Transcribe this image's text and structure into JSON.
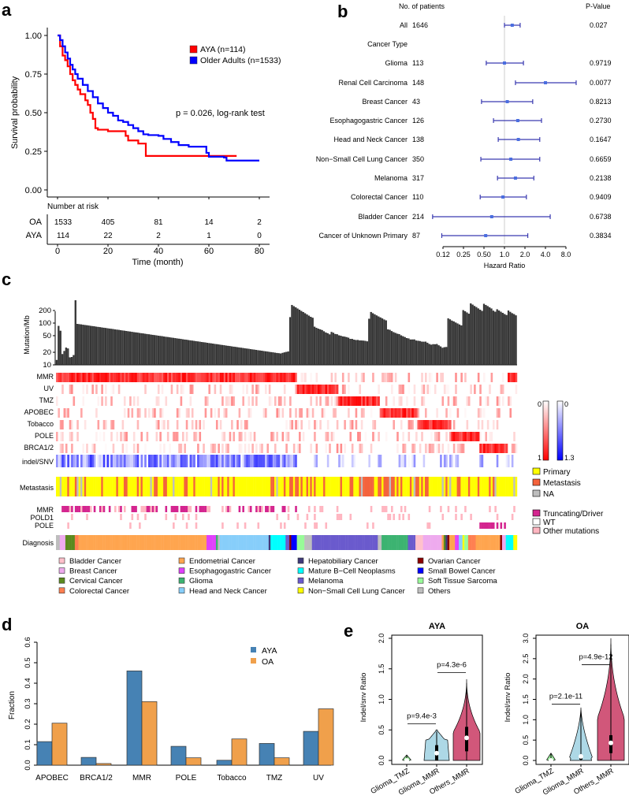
{
  "panel_labels": {
    "a": "a",
    "b": "b",
    "c": "c",
    "d": "d",
    "e": "e"
  },
  "chart_data": [
    {
      "id": "a",
      "type": "line",
      "ylabel": "Survival probability",
      "xlabel": "Time (month)",
      "xlim": [
        0,
        80
      ],
      "ylim": [
        0,
        1
      ],
      "xticks": [
        "0",
        "20",
        "40",
        "60",
        "80"
      ],
      "yticks": [
        "0.00",
        "0.25",
        "0.50",
        "0.75",
        "1.00"
      ],
      "annotation": "p = 0.026, log-rank test",
      "legend_position": "top-right",
      "series": [
        {
          "name": "AYA (n=114)",
          "color": "#ff0000",
          "x": [
            0,
            1,
            2,
            3,
            4,
            5,
            6,
            7,
            8,
            9,
            11,
            12,
            13,
            14,
            15,
            16,
            20,
            26,
            27,
            28,
            31,
            32,
            35,
            35,
            71
          ],
          "y": [
            1,
            0.93,
            0.87,
            0.84,
            0.8,
            0.75,
            0.71,
            0.68,
            0.65,
            0.62,
            0.58,
            0.55,
            0.5,
            0.46,
            0.4,
            0.39,
            0.38,
            0.38,
            0.35,
            0.32,
            0.32,
            0.3,
            0.3,
            0.22,
            0.22
          ]
        },
        {
          "name": "Older Adults (n=1533)",
          "color": "#0000ff",
          "x": [
            0,
            1,
            2,
            3,
            4,
            5,
            6,
            7,
            8,
            10,
            12,
            14,
            16,
            18,
            20,
            22,
            24,
            26,
            28,
            30,
            32,
            34,
            36,
            40,
            42,
            45,
            48,
            52,
            58,
            59,
            60,
            66,
            67,
            80
          ],
          "y": [
            1,
            0.97,
            0.93,
            0.89,
            0.85,
            0.81,
            0.78,
            0.75,
            0.72,
            0.68,
            0.64,
            0.6,
            0.56,
            0.53,
            0.5,
            0.48,
            0.45,
            0.44,
            0.42,
            0.4,
            0.38,
            0.36,
            0.355,
            0.35,
            0.33,
            0.31,
            0.29,
            0.28,
            0.28,
            0.24,
            0.215,
            0.21,
            0.19,
            0.19
          ]
        }
      ],
      "risk_table": {
        "title": "Number at risk",
        "rows": [
          {
            "label": "OA",
            "color": "#0000ff",
            "values": [
              "1533",
              "405",
              "81",
              "14",
              "2"
            ]
          },
          {
            "label": "AYA",
            "color": "#ff0000",
            "values": [
              "114",
              "22",
              "2",
              "1",
              "0"
            ]
          }
        ]
      }
    },
    {
      "id": "b",
      "type": "scatter",
      "subtype": "forest",
      "header_n": "No. of patients",
      "header_p": "P-Value",
      "section_label": "Cancer Type",
      "xlabel": "Hazard Ratio",
      "xscale": "log2",
      "xticks": [
        "0.12",
        "0.25",
        "0.50",
        "1.0",
        "2.0",
        "4.0",
        "8.0"
      ],
      "reference_line": 1.0,
      "rows": [
        {
          "name": "All",
          "n": "1646",
          "hr": 1.3,
          "lo": 1.0,
          "hi": 1.7,
          "p": "0.027"
        },
        {
          "name": "Glioma",
          "n": "113",
          "hr": 1.0,
          "lo": 0.54,
          "hi": 1.9,
          "p": "0.9719"
        },
        {
          "name": "Renal Cell Carcinoma",
          "n": "148",
          "hr": 4.0,
          "lo": 1.45,
          "hi": 11.3,
          "p": "0.0077"
        },
        {
          "name": "Breast Cancer",
          "n": "43",
          "hr": 1.1,
          "lo": 0.46,
          "hi": 2.6,
          "p": "0.8213"
        },
        {
          "name": "Esophagogastric Cancer",
          "n": "126",
          "hr": 1.57,
          "lo": 0.69,
          "hi": 3.5,
          "p": "0.2730"
        },
        {
          "name": "Head and Neck Cancer",
          "n": "138",
          "hr": 1.6,
          "lo": 0.81,
          "hi": 3.3,
          "p": "0.1647"
        },
        {
          "name": "Non−Small Cell Lung Cancer",
          "n": "350",
          "hr": 1.24,
          "lo": 0.45,
          "hi": 3.3,
          "p": "0.6659"
        },
        {
          "name": "Melanoma",
          "n": "317",
          "hr": 1.45,
          "lo": 0.79,
          "hi": 2.7,
          "p": "0.2138"
        },
        {
          "name": "Colorectal Cancer",
          "n": "110",
          "hr": 0.95,
          "lo": 0.44,
          "hi": 2.1,
          "p": "0.9409"
        },
        {
          "name": "Bladder Cancer",
          "n": "214",
          "hr": 0.65,
          "lo": 0.088,
          "hi": 4.7,
          "p": "0.6738"
        },
        {
          "name": "Cancer of Unknown Primary",
          "n": "87",
          "hr": 0.53,
          "lo": 0.12,
          "hi": 2.2,
          "p": "0.3834"
        }
      ]
    },
    {
      "id": "c",
      "type": "heatmap",
      "bar_ylabel": "Mutation/Mb",
      "bar_yscale": "log",
      "bar_yticks": [
        "10",
        "20",
        "50",
        "100",
        "200"
      ],
      "signature_rows": [
        "MMR",
        "UV",
        "TMZ",
        "APOBEC",
        "Tobacco",
        "POLE",
        "BRCA1/2"
      ],
      "ratio_row": "indel/SNV",
      "metastasis_row": "Metastasis",
      "mutation_rows": [
        "MMR",
        "POLD1",
        "POLE"
      ],
      "diagnosis_row": "Diagnosis",
      "red_scale": {
        "min": "0",
        "max": "1",
        "color": "#ff0000"
      },
      "blue_scale": {
        "min": "0",
        "max": "1.3",
        "color": "#0000ff"
      },
      "metastasis_legend": [
        {
          "label": "Primary",
          "color": "#ffff00"
        },
        {
          "label": "Metastasis",
          "color": "#f4633c"
        },
        {
          "label": "NA",
          "color": "#bebebe"
        }
      ],
      "mutation_legend": [
        {
          "label": "Truncating/Driver",
          "color": "#d4258f"
        },
        {
          "label": "WT",
          "color": "#ffffff"
        },
        {
          "label": "Other mutations",
          "color": "#ffb6c1"
        }
      ],
      "diagnosis_legend": [
        {
          "label": "Bladder Cancer",
          "color": "#ffc0cb"
        },
        {
          "label": "Breast Cancer",
          "color": "#eeaaee"
        },
        {
          "label": "Cervical Cancer",
          "color": "#5b8a1e"
        },
        {
          "label": "Colorectal Cancer",
          "color": "#ff7f50"
        },
        {
          "label": "Endometrial Cancer",
          "color": "#ffa54f"
        },
        {
          "label": "Esophagogastric Cancer",
          "color": "#e040fb"
        },
        {
          "label": "Glioma",
          "color": "#3cb371"
        },
        {
          "label": "Head and Neck Cancer",
          "color": "#87cefa"
        },
        {
          "label": "Hepatobiliary Cancer",
          "color": "#3f3a7a"
        },
        {
          "label": "Mature B−Cell Neoplasms",
          "color": "#00ffff"
        },
        {
          "label": "Melanoma",
          "color": "#6a5acd"
        },
        {
          "label": "Non−Small Cell Lung Cancer",
          "color": "#ffff00"
        },
        {
          "label": "Ovarian Cancer",
          "color": "#8b0000"
        },
        {
          "label": "Small Bowel Cancer",
          "color": "#0000ff"
        },
        {
          "label": "Soft Tissue Sarcoma",
          "color": "#98fb98"
        },
        {
          "label": "Others",
          "color": "#bebebe"
        }
      ]
    },
    {
      "id": "d",
      "type": "bar",
      "ylabel": "Fraction",
      "ylim": [
        0,
        0.6
      ],
      "yticks": [
        "0.0",
        "0.1",
        "0.2",
        "0.3",
        "0.4",
        "0.5",
        "0.6"
      ],
      "categories": [
        "APOBEC",
        "BRCA1/2",
        "MMR",
        "POLE",
        "Tobacco",
        "TMZ",
        "UV"
      ],
      "legend_position": "top-right",
      "series": [
        {
          "name": "AYA",
          "color": "#4682b4",
          "values": [
            0.115,
            0.038,
            0.46,
            0.092,
            0.024,
            0.106,
            0.165
          ]
        },
        {
          "name": "OA",
          "color": "#f0a04b",
          "values": [
            0.205,
            0.008,
            0.31,
            0.036,
            0.128,
            0.036,
            0.275
          ]
        }
      ]
    },
    {
      "id": "e",
      "type": "violin",
      "ylabel": "Indel/snv Ratio",
      "panels": [
        {
          "title": "AYA",
          "ylim": [
            0,
            2
          ],
          "yticks": [
            "0.0",
            "0.5",
            "1.0",
            "1.5",
            "2.0"
          ],
          "groups": [
            {
              "name": "Glioma_TMZ",
              "color": "#98e898",
              "median": 0.0,
              "q1": 0.0,
              "q3": 0.01,
              "max": 0.09
            },
            {
              "name": "Glioma_MMR",
              "color": "#add8e6",
              "median": 0.12,
              "q1": 0.0,
              "q3": 0.25,
              "max": 0.5
            },
            {
              "name": "Others_MMR",
              "color": "#d1577a",
              "median": 0.37,
              "q1": 0.15,
              "q3": 0.55,
              "max": 1.33
            }
          ],
          "comparisons": [
            {
              "label": "p=9.4e-3",
              "from": 0,
              "to": 1,
              "y": 0.6
            },
            {
              "label": "p=4.3e-6",
              "from": 1,
              "to": 2,
              "y": 1.44
            }
          ]
        },
        {
          "title": "OA",
          "ylim": [
            0,
            3
          ],
          "yticks": [
            "0.0",
            "0.5",
            "1.0",
            "1.5",
            "2.0",
            "2.5",
            "3.0"
          ],
          "groups": [
            {
              "name": "Glioma_TMZ",
              "color": "#98e898",
              "median": 0.0,
              "q1": 0.0,
              "q3": 0.01,
              "max": 0.18
            },
            {
              "name": "Glioma_MMR",
              "color": "#add8e6",
              "median": 0.1,
              "q1": 0.02,
              "q3": 0.13,
              "max": 1.3
            },
            {
              "name": "Others_MMR",
              "color": "#d1577a",
              "median": 0.43,
              "q1": 0.18,
              "q3": 0.62,
              "max": 3.0
            }
          ],
          "comparisons": [
            {
              "label": "p=2.1e-11",
              "from": 0,
              "to": 1,
              "y": 1.38
            },
            {
              "label": "p=4.9e-12",
              "from": 1,
              "to": 2,
              "y": 2.35
            }
          ]
        }
      ]
    }
  ]
}
